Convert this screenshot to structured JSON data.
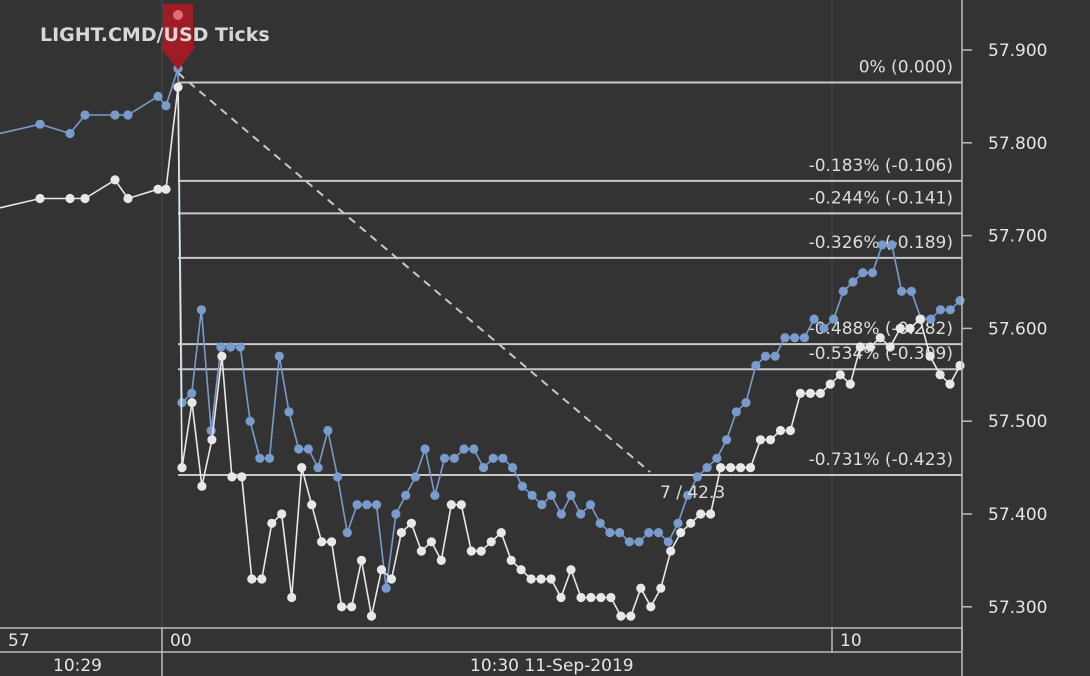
{
  "chart_data": {
    "type": "line",
    "title": "LIGHT.CMD/USD  Ticks",
    "y_axis": {
      "ticks": [
        "57.900",
        "57.800",
        "57.700",
        "57.600",
        "57.500",
        "57.400",
        "57.300"
      ],
      "tick_values": [
        57.9,
        57.8,
        57.7,
        57.6,
        57.5,
        57.4,
        57.3
      ]
    },
    "x_axis": {
      "top_row": [
        "57",
        "00",
        "10"
      ],
      "bottom_row": [
        "10:29",
        "10:30 11-Sep-2019"
      ]
    },
    "fib_levels": [
      {
        "label": "0% (0.000)",
        "value": 57.865
      },
      {
        "label": "-0.183% (-0.106)",
        "value": 57.759
      },
      {
        "label": "-0.244% (-0.141)",
        "value": 57.724
      },
      {
        "label": "-0.326% (-0.189)",
        "value": 57.676
      },
      {
        "label": "-0.488% (-0.282)",
        "value": 57.583
      },
      {
        "label": "-0.534% (-0.309)",
        "value": 57.556
      },
      {
        "label": "-0.731% (-0.423)",
        "value": 57.442
      }
    ],
    "annotation": "7 / 42.3",
    "colors": {
      "background": "#333333",
      "ask_series": "#7a9ccc",
      "bid_series": "#e8e8e8",
      "fib_lines": "#c8c8c8",
      "grid": "#4a4a4a",
      "marker": "#c0202a"
    },
    "series": [
      {
        "values": [
          57.81,
          57.82,
          57.81,
          57.83,
          57.83,
          57.83,
          57.85,
          57.84,
          57.88,
          57.52,
          57.53,
          57.62,
          57.49,
          57.58,
          57.58,
          57.58,
          57.5,
          57.46,
          57.46,
          57.57,
          57.51,
          57.47,
          57.47,
          57.45,
          57.49,
          57.44,
          57.38,
          57.41,
          57.41,
          57.41,
          57.32,
          57.4,
          57.42,
          57.44,
          57.47,
          57.42,
          57.46,
          57.46,
          57.47,
          57.47,
          57.45,
          57.46,
          57.46,
          57.45,
          57.43,
          57.42,
          57.41,
          57.42,
          57.4,
          57.42,
          57.4,
          57.41,
          57.39,
          57.38,
          57.38,
          57.37,
          57.37,
          57.38,
          57.38,
          57.37,
          57.39,
          57.42,
          57.44,
          57.45,
          57.46,
          57.48,
          57.51,
          57.52,
          57.56,
          57.57,
          57.57,
          57.59,
          57.59,
          57.59,
          57.61,
          57.6,
          57.61,
          57.64,
          57.65,
          57.66,
          57.66,
          57.69,
          57.69,
          57.64,
          57.64,
          57.61,
          57.61,
          57.62,
          57.62,
          57.63
        ]
      },
      {
        "values": [
          57.73,
          57.74,
          57.74,
          57.74,
          57.76,
          57.74,
          57.75,
          57.75,
          57.86,
          57.45,
          57.52,
          57.43,
          57.48,
          57.57,
          57.44,
          57.44,
          57.33,
          57.33,
          57.39,
          57.4,
          57.31,
          57.45,
          57.41,
          57.37,
          57.37,
          57.3,
          57.3,
          57.35,
          57.29,
          57.34,
          57.33,
          57.38,
          57.39,
          57.36,
          57.37,
          57.35,
          57.41,
          57.41,
          57.36,
          57.36,
          57.37,
          57.38,
          57.35,
          57.34,
          57.33,
          57.33,
          57.33,
          57.31,
          57.34,
          57.31,
          57.31,
          57.31,
          57.31,
          57.29,
          57.29,
          57.32,
          57.3,
          57.32,
          57.36,
          57.38,
          57.39,
          57.4,
          57.4,
          57.45,
          57.45,
          57.45,
          57.45,
          57.48,
          57.48,
          57.49,
          57.49,
          57.53,
          57.53,
          57.53,
          57.54,
          57.55,
          57.54,
          57.58,
          57.58,
          57.59,
          57.58,
          57.6,
          57.6,
          57.61,
          57.57,
          57.55,
          57.54,
          57.56
        ]
      }
    ],
    "ylim": [
      57.28,
      57.95
    ]
  }
}
